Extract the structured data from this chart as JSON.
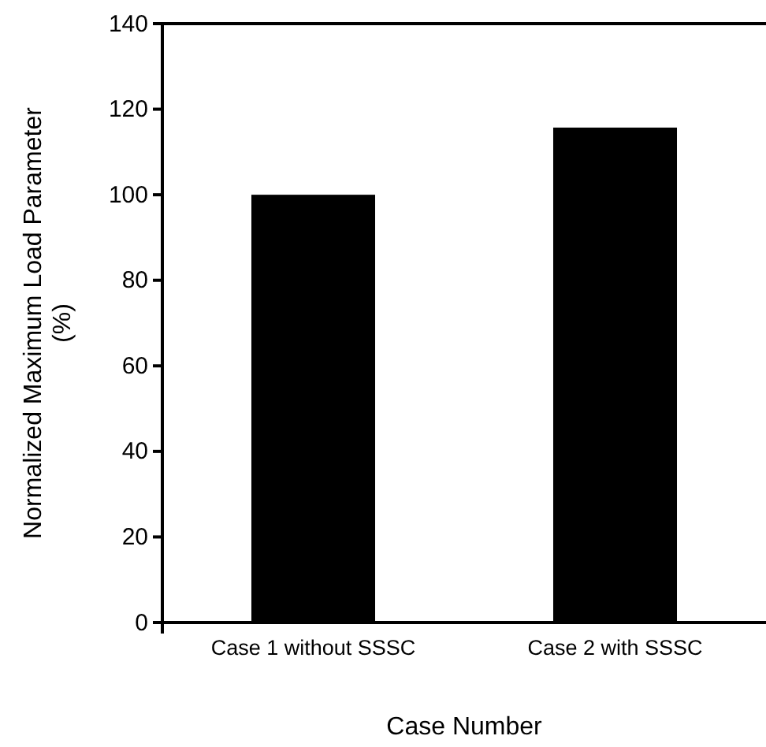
{
  "chart_data": {
    "type": "bar",
    "xlabel": "Case Number",
    "ylabel": "Normalized Maximum Load Parameter\n(%)",
    "categories": [
      "Case 1 without SSSC",
      "Case 2 with SSSC"
    ],
    "values": [
      100,
      115.7
    ],
    "color": "#000000",
    "ylim": [
      0,
      140
    ],
    "yticks": [
      0,
      20,
      40,
      60,
      80,
      100,
      120,
      140
    ],
    "grid": false
  }
}
